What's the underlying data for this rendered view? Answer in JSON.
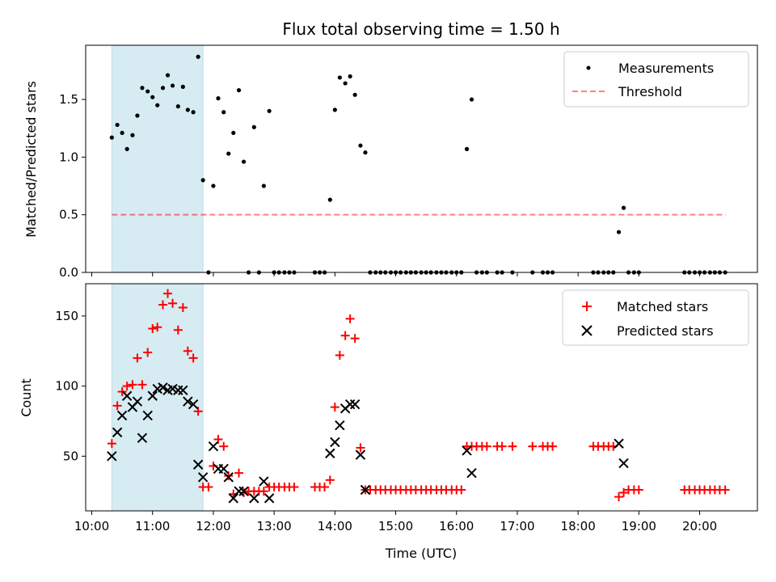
{
  "chart_data": {
    "type": "scatter",
    "title": "Flux total observing time = 1.50 h",
    "xlabel": "Time (UTC)",
    "x_ticks": [
      {
        "hour": 10,
        "label": "10:00"
      },
      {
        "hour": 11,
        "label": "11:00"
      },
      {
        "hour": 12,
        "label": "12:00"
      },
      {
        "hour": 13,
        "label": "13:00"
      },
      {
        "hour": 14,
        "label": "14:00"
      },
      {
        "hour": 15,
        "label": "15:00"
      },
      {
        "hour": 16,
        "label": "16:00"
      },
      {
        "hour": 17,
        "label": "17:00"
      },
      {
        "hour": 18,
        "label": "18:00"
      },
      {
        "hour": 19,
        "label": "19:00"
      },
      {
        "hour": 20,
        "label": "20:00"
      }
    ],
    "xlim_hours": [
      9.9,
      20.95
    ],
    "highlight_hours": [
      10.33,
      11.83
    ],
    "top_panel": {
      "ylabel": "Matched/Predicted stars",
      "ylim": [
        0,
        1.97
      ],
      "yticks": [
        {
          "value": 0.0,
          "label": "0.0"
        },
        {
          "value": 0.5,
          "label": "0.5"
        },
        {
          "value": 1.0,
          "label": "1.0"
        },
        {
          "value": 1.5,
          "label": "1.5"
        }
      ],
      "threshold": 0.5,
      "threshold_range_hours": [
        10.33,
        20.43
      ],
      "legend": {
        "location": "upper right",
        "entries": [
          "Measurements",
          "Threshold"
        ]
      },
      "measurements": [
        [
          10.33,
          1.17
        ],
        [
          10.42,
          1.28
        ],
        [
          10.5,
          1.21
        ],
        [
          10.58,
          1.07
        ],
        [
          10.67,
          1.19
        ],
        [
          10.75,
          1.36
        ],
        [
          10.83,
          1.6
        ],
        [
          10.92,
          1.57
        ],
        [
          11.0,
          1.52
        ],
        [
          11.08,
          1.45
        ],
        [
          11.17,
          1.6
        ],
        [
          11.25,
          1.71
        ],
        [
          11.33,
          1.62
        ],
        [
          11.42,
          1.44
        ],
        [
          11.5,
          1.61
        ],
        [
          11.58,
          1.41
        ],
        [
          11.67,
          1.39
        ],
        [
          11.75,
          1.87
        ],
        [
          11.83,
          0.8
        ],
        [
          11.92,
          0.0
        ],
        [
          12.0,
          0.75
        ],
        [
          12.08,
          1.51
        ],
        [
          12.17,
          1.39
        ],
        [
          12.25,
          1.03
        ],
        [
          12.33,
          1.21
        ],
        [
          12.42,
          1.58
        ],
        [
          12.5,
          0.96
        ],
        [
          12.58,
          0.0
        ],
        [
          12.67,
          1.26
        ],
        [
          12.75,
          0.0
        ],
        [
          12.83,
          0.75
        ],
        [
          12.92,
          1.4
        ],
        [
          13.0,
          0.0
        ],
        [
          13.08,
          0.0
        ],
        [
          13.17,
          0.0
        ],
        [
          13.25,
          0.0
        ],
        [
          13.33,
          0.0
        ],
        [
          13.67,
          0.0
        ],
        [
          13.75,
          0.0
        ],
        [
          13.83,
          0.0
        ],
        [
          13.92,
          0.63
        ],
        [
          14.0,
          1.41
        ],
        [
          14.08,
          1.69
        ],
        [
          14.17,
          1.64
        ],
        [
          14.25,
          1.7
        ],
        [
          14.33,
          1.54
        ],
        [
          14.42,
          1.1
        ],
        [
          14.5,
          1.04
        ],
        [
          14.58,
          0.0
        ],
        [
          14.67,
          0.0
        ],
        [
          14.75,
          0.0
        ],
        [
          14.83,
          0.0
        ],
        [
          14.92,
          0.0
        ],
        [
          15.0,
          0.0
        ],
        [
          15.08,
          0.0
        ],
        [
          15.17,
          0.0
        ],
        [
          15.25,
          0.0
        ],
        [
          15.33,
          0.0
        ],
        [
          15.42,
          0.0
        ],
        [
          15.5,
          0.0
        ],
        [
          15.58,
          0.0
        ],
        [
          15.67,
          0.0
        ],
        [
          15.75,
          0.0
        ],
        [
          15.83,
          0.0
        ],
        [
          15.92,
          0.0
        ],
        [
          16.0,
          0.0
        ],
        [
          16.08,
          0.0
        ],
        [
          16.17,
          1.07
        ],
        [
          16.25,
          1.5
        ],
        [
          16.33,
          0.0
        ],
        [
          16.42,
          0.0
        ],
        [
          16.5,
          0.0
        ],
        [
          16.67,
          0.0
        ],
        [
          16.75,
          0.0
        ],
        [
          16.92,
          0.0
        ],
        [
          17.25,
          0.0
        ],
        [
          17.42,
          0.0
        ],
        [
          17.5,
          0.0
        ],
        [
          17.58,
          0.0
        ],
        [
          18.25,
          0.0
        ],
        [
          18.33,
          0.0
        ],
        [
          18.42,
          0.0
        ],
        [
          18.5,
          0.0
        ],
        [
          18.58,
          0.0
        ],
        [
          18.67,
          0.35
        ],
        [
          18.75,
          0.56
        ],
        [
          18.83,
          0.0
        ],
        [
          18.92,
          0.0
        ],
        [
          19.0,
          0.0
        ],
        [
          19.75,
          0.0
        ],
        [
          19.83,
          0.0
        ],
        [
          19.92,
          0.0
        ],
        [
          20.0,
          0.0
        ],
        [
          20.08,
          0.0
        ],
        [
          20.17,
          0.0
        ],
        [
          20.25,
          0.0
        ],
        [
          20.33,
          0.0
        ],
        [
          20.42,
          0.0
        ]
      ]
    },
    "bottom_panel": {
      "ylabel": "Count",
      "ylim": [
        11,
        173
      ],
      "yticks": [
        {
          "value": 50,
          "label": "50"
        },
        {
          "value": 100,
          "label": "100"
        },
        {
          "value": 150,
          "label": "150"
        }
      ],
      "legend": {
        "location": "upper right",
        "entries": [
          "Matched stars",
          "Predicted stars"
        ]
      },
      "matched": [
        [
          10.33,
          59
        ],
        [
          10.42,
          86
        ],
        [
          10.5,
          96
        ],
        [
          10.58,
          100
        ],
        [
          10.67,
          101
        ],
        [
          10.75,
          120
        ],
        [
          10.83,
          101
        ],
        [
          10.92,
          124
        ],
        [
          11.0,
          141
        ],
        [
          11.08,
          142
        ],
        [
          11.17,
          158
        ],
        [
          11.25,
          166
        ],
        [
          11.33,
          159
        ],
        [
          11.42,
          140
        ],
        [
          11.5,
          156
        ],
        [
          11.58,
          125
        ],
        [
          11.67,
          120
        ],
        [
          11.75,
          82
        ],
        [
          11.83,
          28
        ],
        [
          11.92,
          28
        ],
        [
          12.0,
          43
        ],
        [
          12.08,
          62
        ],
        [
          12.17,
          57
        ],
        [
          12.25,
          36
        ],
        [
          12.33,
          23
        ],
        [
          12.42,
          38
        ],
        [
          12.5,
          24
        ],
        [
          12.58,
          25
        ],
        [
          12.67,
          25
        ],
        [
          12.75,
          25
        ],
        [
          12.83,
          25
        ],
        [
          12.92,
          28
        ],
        [
          13.0,
          28
        ],
        [
          13.08,
          28
        ],
        [
          13.17,
          28
        ],
        [
          13.25,
          28
        ],
        [
          13.33,
          28
        ],
        [
          13.67,
          28
        ],
        [
          13.75,
          28
        ],
        [
          13.83,
          28
        ],
        [
          13.92,
          33
        ],
        [
          14.0,
          85
        ],
        [
          14.08,
          122
        ],
        [
          14.17,
          136
        ],
        [
          14.25,
          148
        ],
        [
          14.33,
          134
        ],
        [
          14.42,
          56
        ],
        [
          14.5,
          26
        ],
        [
          14.58,
          26
        ],
        [
          14.67,
          26
        ],
        [
          14.75,
          26
        ],
        [
          14.83,
          26
        ],
        [
          14.92,
          26
        ],
        [
          15.0,
          26
        ],
        [
          15.08,
          26
        ],
        [
          15.17,
          26
        ],
        [
          15.25,
          26
        ],
        [
          15.33,
          26
        ],
        [
          15.42,
          26
        ],
        [
          15.5,
          26
        ],
        [
          15.58,
          26
        ],
        [
          15.67,
          26
        ],
        [
          15.75,
          26
        ],
        [
          15.83,
          26
        ],
        [
          15.92,
          26
        ],
        [
          16.0,
          26
        ],
        [
          16.08,
          26
        ],
        [
          16.17,
          57
        ],
        [
          16.25,
          57
        ],
        [
          16.33,
          57
        ],
        [
          16.42,
          57
        ],
        [
          16.5,
          57
        ],
        [
          16.67,
          57
        ],
        [
          16.75,
          57
        ],
        [
          16.92,
          57
        ],
        [
          17.25,
          57
        ],
        [
          17.42,
          57
        ],
        [
          17.5,
          57
        ],
        [
          17.58,
          57
        ],
        [
          18.25,
          57
        ],
        [
          18.33,
          57
        ],
        [
          18.42,
          57
        ],
        [
          18.5,
          57
        ],
        [
          18.58,
          57
        ],
        [
          18.67,
          21
        ],
        [
          18.75,
          24
        ],
        [
          18.83,
          26
        ],
        [
          18.92,
          26
        ],
        [
          19.0,
          26
        ],
        [
          19.75,
          26
        ],
        [
          19.83,
          26
        ],
        [
          19.92,
          26
        ],
        [
          20.0,
          26
        ],
        [
          20.08,
          26
        ],
        [
          20.17,
          26
        ],
        [
          20.25,
          26
        ],
        [
          20.33,
          26
        ],
        [
          20.42,
          26
        ]
      ],
      "predicted": [
        [
          10.33,
          50
        ],
        [
          10.42,
          67
        ],
        [
          10.5,
          79
        ],
        [
          10.58,
          93
        ],
        [
          10.67,
          85
        ],
        [
          10.75,
          89
        ],
        [
          10.83,
          63
        ],
        [
          10.92,
          79
        ],
        [
          11.0,
          93
        ],
        [
          11.08,
          98
        ],
        [
          11.17,
          99
        ],
        [
          11.25,
          97
        ],
        [
          11.33,
          98
        ],
        [
          11.42,
          97
        ],
        [
          11.5,
          97
        ],
        [
          11.58,
          89
        ],
        [
          11.67,
          87
        ],
        [
          11.75,
          44
        ],
        [
          11.83,
          35
        ],
        [
          12.0,
          57
        ],
        [
          12.08,
          41
        ],
        [
          12.17,
          41
        ],
        [
          12.25,
          35
        ],
        [
          12.33,
          20
        ],
        [
          12.42,
          25
        ],
        [
          12.5,
          25
        ],
        [
          12.67,
          20
        ],
        [
          12.83,
          32
        ],
        [
          12.92,
          20
        ],
        [
          13.92,
          52
        ],
        [
          14.0,
          60
        ],
        [
          14.08,
          72
        ],
        [
          14.17,
          84
        ],
        [
          14.25,
          87
        ],
        [
          14.33,
          87
        ],
        [
          14.42,
          51
        ],
        [
          14.5,
          26
        ],
        [
          16.17,
          54
        ],
        [
          16.25,
          38
        ],
        [
          18.67,
          59
        ],
        [
          18.75,
          45
        ]
      ]
    }
  }
}
